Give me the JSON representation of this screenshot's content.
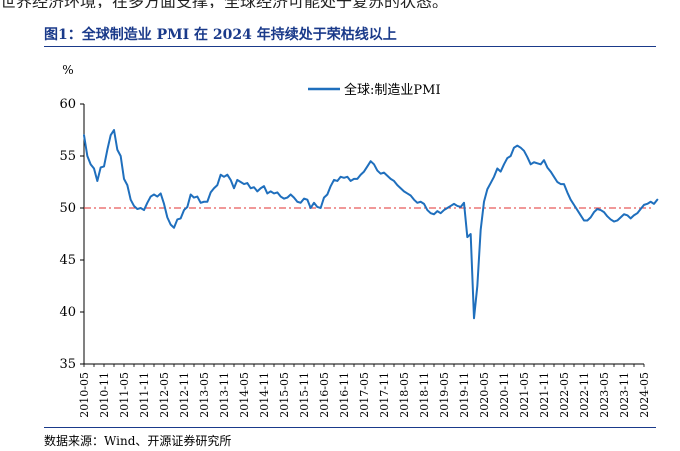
{
  "chart_data": {
    "type": "line",
    "title": "图1：全球制造业 PMI 在 2024 年持续处于荣枯线以上",
    "ylabel": "%",
    "ylim": [
      35,
      60
    ],
    "yticks": [
      35,
      40,
      45,
      50,
      55,
      60
    ],
    "xticks": [
      "2010-05",
      "2010-11",
      "2011-05",
      "2011-11",
      "2012-05",
      "2012-11",
      "2013-05",
      "2013-11",
      "2014-05",
      "2014-11",
      "2015-05",
      "2015-11",
      "2016-05",
      "2016-11",
      "2017-05",
      "2017-11",
      "2018-05",
      "2018-11",
      "2019-05",
      "2019-11",
      "2020-05",
      "2020-11",
      "2021-05",
      "2021-11",
      "2022-05",
      "2022-11",
      "2023-05",
      "2023-11",
      "2024-05"
    ],
    "x_start": "2010-05",
    "reference_line": {
      "value": 50,
      "color": "#e03030",
      "style": "dash-dot"
    },
    "legend_position": "top-center",
    "series": [
      {
        "name": "全球:制造业PMI",
        "color": "#1f6fbd",
        "values": [
          57.0,
          55.0,
          54.2,
          53.8,
          52.6,
          53.9,
          54.0,
          55.6,
          57.0,
          57.5,
          55.6,
          55.0,
          52.8,
          52.2,
          50.8,
          50.2,
          49.9,
          50.0,
          49.8,
          50.5,
          51.1,
          51.3,
          51.1,
          51.4,
          50.4,
          49.1,
          48.4,
          48.1,
          48.9,
          49.0,
          49.8,
          50.1,
          51.3,
          51.0,
          51.1,
          50.5,
          50.6,
          50.6,
          51.5,
          51.9,
          52.2,
          53.2,
          53.0,
          53.2,
          52.7,
          51.9,
          52.7,
          52.5,
          52.3,
          52.4,
          51.9,
          52.0,
          51.6,
          51.9,
          52.1,
          51.4,
          51.6,
          51.4,
          51.5,
          51.1,
          50.9,
          51.0,
          51.3,
          51.0,
          50.6,
          50.5,
          50.9,
          50.8,
          50.0,
          50.5,
          50.1,
          50.0,
          51.0,
          51.3,
          52.1,
          52.7,
          52.6,
          53.0,
          52.9,
          53.0,
          52.6,
          52.8,
          52.8,
          53.2,
          53.5,
          54.0,
          54.5,
          54.2,
          53.6,
          53.3,
          53.4,
          53.1,
          52.8,
          52.6,
          52.2,
          51.9,
          51.6,
          51.4,
          51.2,
          50.8,
          50.5,
          50.6,
          50.4,
          49.8,
          49.5,
          49.4,
          49.7,
          49.5,
          49.8,
          50.0,
          50.2,
          50.4,
          50.2,
          50.1,
          50.5,
          47.2,
          47.5,
          39.4,
          42.5,
          47.9,
          50.6,
          51.8,
          52.4,
          53.0,
          53.8,
          53.5,
          54.2,
          54.8,
          55.0,
          55.8,
          56.0,
          55.8,
          55.5,
          54.9,
          54.2,
          54.4,
          54.3,
          54.2,
          54.6,
          53.9,
          53.5,
          53.0,
          52.5,
          52.3,
          52.3,
          51.5,
          50.8,
          50.3,
          49.8,
          49.3,
          48.8,
          48.8,
          49.1,
          49.6,
          49.9,
          49.8,
          49.6,
          49.2,
          48.9,
          48.7,
          48.8,
          49.1,
          49.4,
          49.3,
          49.0,
          49.3,
          49.5,
          49.9,
          50.3,
          50.4,
          50.6,
          50.4,
          50.8
        ]
      }
    ]
  },
  "header_fragment": "世界经济环境，在多方面支撑，全球经济可能处于复苏的状态。",
  "source_note": "数据来源：Wind、开源证券研究所"
}
